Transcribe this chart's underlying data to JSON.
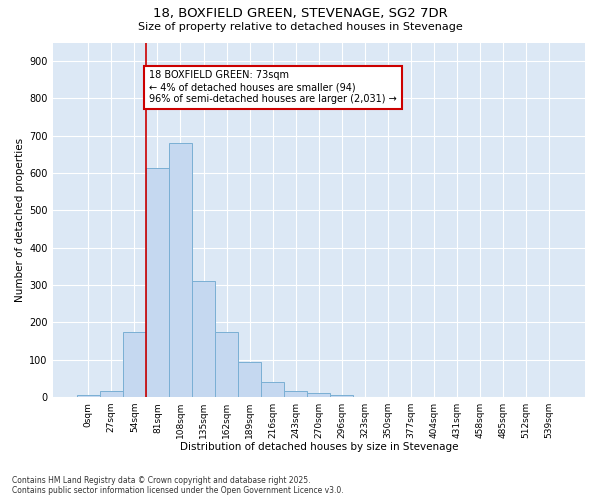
{
  "title1": "18, BOXFIELD GREEN, STEVENAGE, SG2 7DR",
  "title2": "Size of property relative to detached houses in Stevenage",
  "xlabel": "Distribution of detached houses by size in Stevenage",
  "ylabel": "Number of detached properties",
  "bar_color": "#c5d8f0",
  "bar_edge_color": "#7aafd4",
  "background_color": "#dce8f5",
  "grid_color": "#ffffff",
  "categories": [
    "0sqm",
    "27sqm",
    "54sqm",
    "81sqm",
    "108sqm",
    "135sqm",
    "162sqm",
    "189sqm",
    "216sqm",
    "243sqm",
    "270sqm",
    "296sqm",
    "323sqm",
    "350sqm",
    "377sqm",
    "404sqm",
    "431sqm",
    "458sqm",
    "485sqm",
    "512sqm",
    "539sqm"
  ],
  "values": [
    5,
    15,
    175,
    615,
    680,
    310,
    175,
    95,
    40,
    15,
    12,
    5,
    0,
    0,
    0,
    0,
    0,
    0,
    0,
    0,
    0
  ],
  "ylim": [
    0,
    950
  ],
  "yticks": [
    0,
    100,
    200,
    300,
    400,
    500,
    600,
    700,
    800,
    900
  ],
  "vline_x": 2.5,
  "annotation_text": "18 BOXFIELD GREEN: 73sqm\n← 4% of detached houses are smaller (94)\n96% of semi-detached houses are larger (2,031) →",
  "annotation_box_color": "#ffffff",
  "annotation_box_edge_color": "#cc0000",
  "vline_color": "#cc0000",
  "footnote1": "Contains HM Land Registry data © Crown copyright and database right 2025.",
  "footnote2": "Contains public sector information licensed under the Open Government Licence v3.0."
}
